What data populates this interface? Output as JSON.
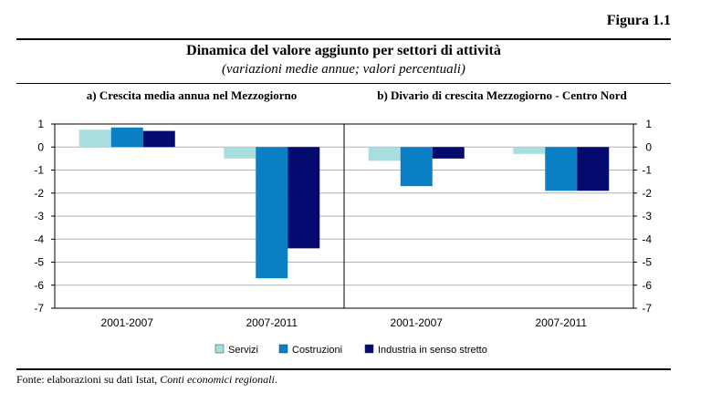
{
  "figure_label": "Figura 1.1",
  "title": "Dinamica del valore aggiunto per settori di attività",
  "subtitle": "(variazioni medie annue; valori percentuali)",
  "source": {
    "prefix": "Fonte: elaborazioni su dati Istat, ",
    "italic": "Conti economici regionali",
    "suffix": "."
  },
  "colors": {
    "Servizi": "#a8dede",
    "Costruzioni": "#0a7fc4",
    "Industria in senso stretto": "#050b6e"
  },
  "chart_data": [
    {
      "type": "bar",
      "title": "a) Crescita media annua nel Mezzogiorno",
      "categories": [
        "2001-2007",
        "2007-2011"
      ],
      "ylim": [
        -7,
        1
      ],
      "yticks": [
        "1",
        "0",
        "-1",
        "-2",
        "-3",
        "-4",
        "-5",
        "-6",
        "-7"
      ],
      "grid": true,
      "legend": "bottom",
      "series": [
        {
          "name": "Servizi",
          "values": [
            0.75,
            -0.5
          ]
        },
        {
          "name": "Costruzioni",
          "values": [
            0.85,
            -5.7
          ]
        },
        {
          "name": "Industria in senso stretto",
          "values": [
            0.7,
            -4.4
          ]
        }
      ]
    },
    {
      "type": "bar",
      "title": "b) Divario di crescita Mezzogiorno - Centro Nord",
      "categories": [
        "2001-2007",
        "2007-2011"
      ],
      "ylim": [
        -7,
        1
      ],
      "yticks": [
        "1",
        "0",
        "-1",
        "-2",
        "-3",
        "-4",
        "-5",
        "-6",
        "-7"
      ],
      "grid": true,
      "legend": "bottom",
      "series": [
        {
          "name": "Servizi",
          "values": [
            -0.6,
            -0.3
          ]
        },
        {
          "name": "Costruzioni",
          "values": [
            -1.7,
            -1.9
          ]
        },
        {
          "name": "Industria in senso stretto",
          "values": [
            -0.5,
            -1.9
          ]
        }
      ]
    }
  ]
}
